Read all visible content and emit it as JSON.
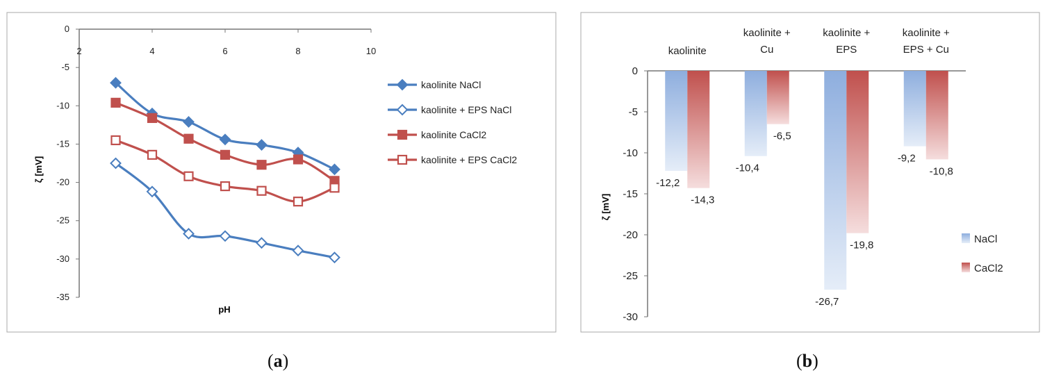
{
  "chart_data": [
    {
      "type": "line",
      "panel_label": "a",
      "title": "",
      "xlabel": "pH",
      "ylabel": "ζ [mV]",
      "xlim": [
        2,
        10
      ],
      "ylim": [
        -35,
        0
      ],
      "x_ticks": [
        2,
        4,
        6,
        8,
        10
      ],
      "y_ticks": [
        0,
        -5,
        -10,
        -15,
        -20,
        -25,
        -30,
        -35
      ],
      "grid": false,
      "legend_position": "right",
      "x": [
        3,
        4,
        5,
        6,
        7,
        8,
        9
      ],
      "series": [
        {
          "name": "kaolinite NaCl",
          "color": "#4a7ebf",
          "marker": "filled-diamond",
          "values": [
            -7.0,
            -11.0,
            -12.1,
            -14.4,
            -15.1,
            -16.1,
            -18.3
          ]
        },
        {
          "name": "kaolinite + EPS NaCl",
          "color": "#4a7ebf",
          "marker": "open-diamond",
          "values": [
            -17.5,
            -21.2,
            -26.7,
            -27.0,
            -27.9,
            -28.9,
            -29.8
          ]
        },
        {
          "name": "kaolinite CaCl2",
          "color": "#c0504d",
          "marker": "filled-square",
          "values": [
            -9.6,
            -11.6,
            -14.3,
            -16.4,
            -17.7,
            -17.0,
            -19.8
          ]
        },
        {
          "name": "kaolinite + EPS CaCl2",
          "color": "#c0504d",
          "marker": "open-square",
          "values": [
            -14.5,
            -16.4,
            -19.2,
            -20.5,
            -21.1,
            -22.5,
            -20.7
          ]
        }
      ]
    },
    {
      "type": "bar",
      "panel_label": "b",
      "title": "",
      "xlabel": "",
      "ylabel": "ζ [mV]",
      "ylim": [
        -30,
        0
      ],
      "y_ticks": [
        0,
        -5,
        -10,
        -15,
        -20,
        -25,
        -30
      ],
      "grid": false,
      "legend_position": "right",
      "categories": [
        "kaolinite",
        "kaolinite + Cu",
        "kaolinite + EPS",
        "kaolinite + EPS + Cu"
      ],
      "series": [
        {
          "name": "NaCl",
          "color": "#4a7ebf",
          "values": [
            -12.2,
            -10.4,
            -26.7,
            -9.2
          ],
          "labels": [
            "-12,2",
            "-10,4",
            "-26,7",
            "-9,2"
          ]
        },
        {
          "name": "CaCl2",
          "color": "#c0504d",
          "values": [
            -14.3,
            -6.5,
            -19.8,
            -10.8
          ],
          "labels": [
            "-14,3",
            "-6,5",
            "-19,8",
            "-10,8"
          ]
        }
      ]
    }
  ]
}
